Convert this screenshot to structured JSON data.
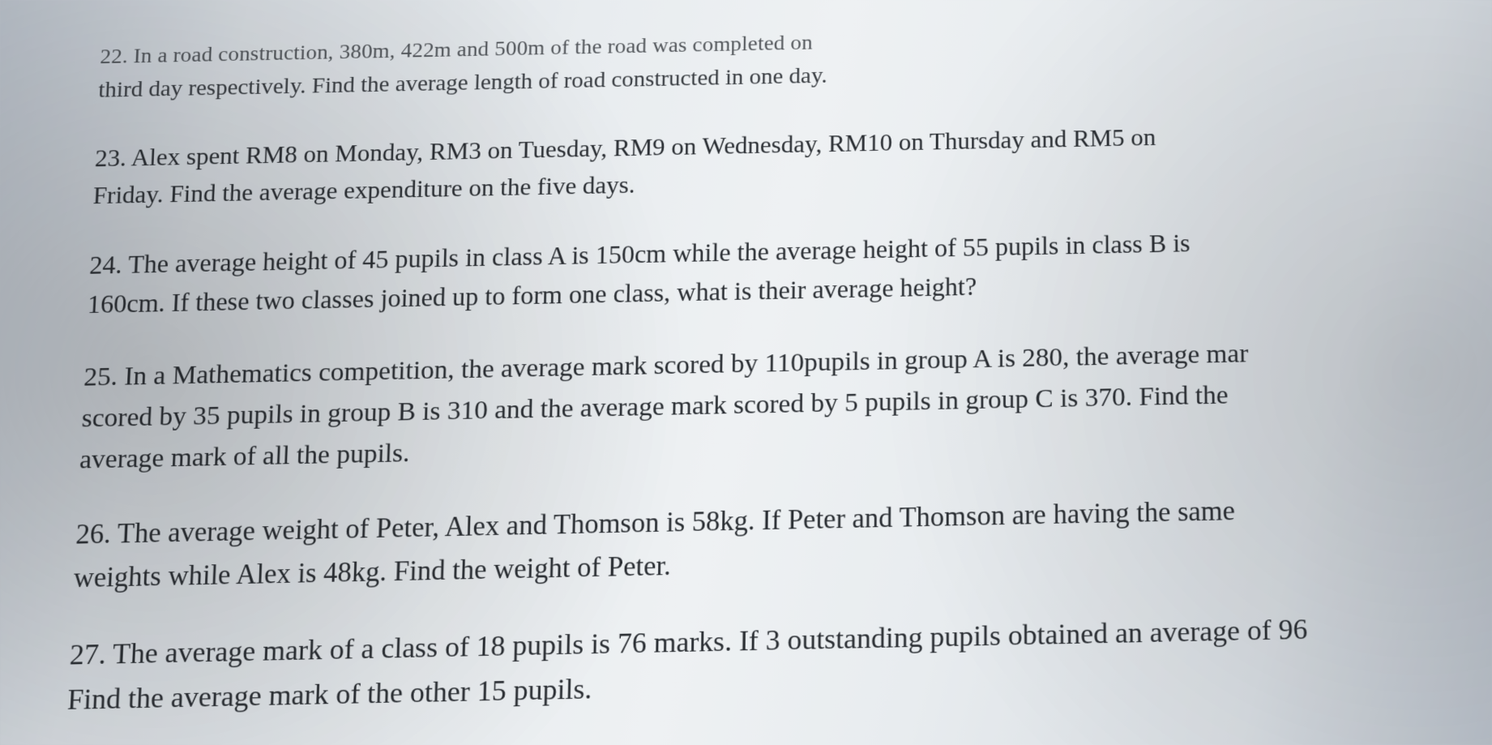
{
  "questions": {
    "q22": {
      "line1": "22. In a road construction, 380m, 422m and 500m of the road was completed on",
      "line2": "third day respectively. Find the average length of road constructed in one day."
    },
    "q23": {
      "line1": "23. Alex spent RM8 on Monday, RM3 on Tuesday, RM9 on Wednesday, RM10 on Thursday and RM5 on",
      "line2": "Friday. Find the average expenditure on the five days."
    },
    "q24": {
      "line1": "24. The average height of 45 pupils in class A is 150cm while the average height of 55 pupils in class B is",
      "line2": "160cm. If these two classes joined up to form one class, what is their average height?"
    },
    "q25": {
      "line1": "25. In a Mathematics competition, the average mark scored by 110pupils in group A is 280, the average mar",
      "line2": "scored by 35 pupils in group B is 310 and the average mark scored by 5 pupils in group C is 370. Find the",
      "line3": "average mark of all the pupils."
    },
    "q26": {
      "line1": "26. The average weight of Peter, Alex and Thomson is 58kg. If Peter and Thomson are having the same",
      "line2": "weights while Alex is 48kg. Find the weight of Peter."
    },
    "q27": {
      "line1": "27. The average mark of a class of 18 pupils is 76 marks. If 3 outstanding pupils obtained an average of 96",
      "line2": "Find the average mark of the other 15 pupils."
    }
  }
}
